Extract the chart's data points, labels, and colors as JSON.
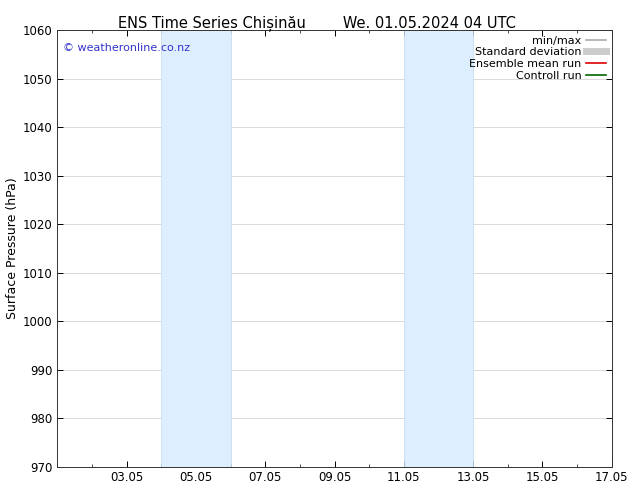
{
  "title_left": "ENS Time Series Chișinău",
  "title_right": "We. 01.05.2024 04 UTC",
  "ylabel": "Surface Pressure (hPa)",
  "ylim": [
    970,
    1060
  ],
  "yticks": [
    970,
    980,
    990,
    1000,
    1010,
    1020,
    1030,
    1040,
    1050,
    1060
  ],
  "x_min": 1,
  "x_max": 17,
  "xticks_labels": [
    "03.05",
    "05.05",
    "07.05",
    "09.05",
    "11.05",
    "13.05",
    "15.05",
    "17.05"
  ],
  "xticks_positions": [
    3,
    5,
    7,
    9,
    11,
    13,
    15,
    17
  ],
  "shade_bands": [
    {
      "x_start": 4,
      "x_end": 6
    },
    {
      "x_start": 11,
      "x_end": 13
    }
  ],
  "shade_color": "#ddeeff",
  "shade_edge_color": "#c0d8f0",
  "watermark": "© weatheronline.co.nz",
  "watermark_color": "#3333cc",
  "legend_items": [
    {
      "label": "min/max",
      "color": "#aaaaaa",
      "lw": 1.2
    },
    {
      "label": "Standard deviation",
      "color": "#cccccc",
      "lw": 5
    },
    {
      "label": "Ensemble mean run",
      "color": "#dd0000",
      "lw": 1.2
    },
    {
      "label": "Controll run",
      "color": "#006600",
      "lw": 1.2
    }
  ],
  "bg_color": "#ffffff",
  "grid_color": "#cccccc",
  "tick_label_fontsize": 8.5,
  "title_fontsize": 10.5,
  "ylabel_fontsize": 9
}
